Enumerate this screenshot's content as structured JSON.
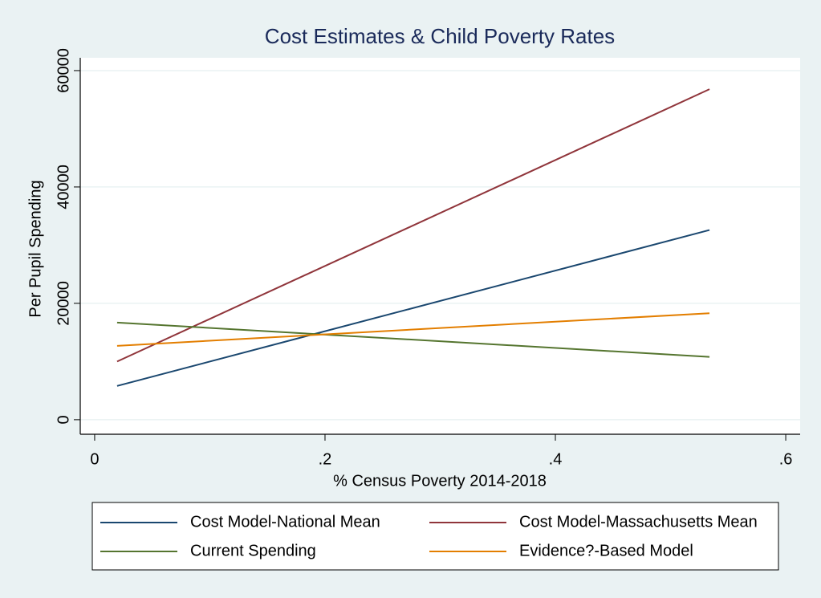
{
  "chart_data": {
    "type": "line",
    "title": "Cost Estimates & Child Poverty Rates",
    "x_label": "% Census Poverty 2014-2018",
    "y_label": "Per Pupil Spending",
    "x": [
      0.0195,
      0.5338
    ],
    "series": [
      {
        "name": "Cost Model-National Mean",
        "color": "#1a476f",
        "values": [
          5800,
          32600
        ]
      },
      {
        "name": "Cost Model-Massachusetts Mean",
        "color": "#90353b",
        "values": [
          10000,
          56800
        ]
      },
      {
        "name": "Current Spending",
        "color": "#55752f",
        "values": [
          16700,
          10800
        ]
      },
      {
        "name": "Evidence?-Based Model",
        "color": "#e37e00",
        "values": [
          12700,
          18300
        ]
      }
    ],
    "xlim": [
      -0.0125,
      0.6125
    ],
    "xticks": [
      0,
      {
        "value": 0.2,
        "label": ".2"
      },
      {
        "value": 0.4,
        "label": ".4"
      },
      {
        "value": 0.6,
        "label": ".6"
      }
    ],
    "ylim": [
      -2500,
      62200
    ],
    "yticks": [
      0,
      20000,
      40000,
      60000
    ],
    "grid": true
  }
}
